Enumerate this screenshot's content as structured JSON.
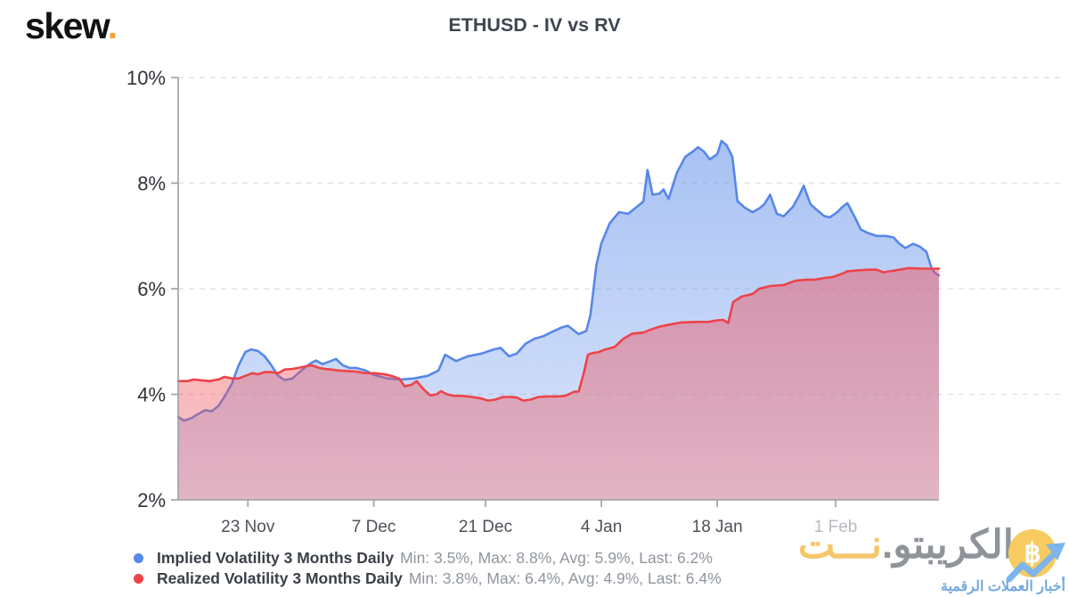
{
  "header": {
    "logo_text": "skew",
    "logo_dot": ".",
    "title": "ETHUSD - IV vs RV"
  },
  "chart_data": {
    "type": "area",
    "title": "ETHUSD - IV vs RV",
    "xlabel": "",
    "ylabel": "",
    "unit": "%",
    "ylim": [
      2,
      10
    ],
    "grid": "dashed-horizontal",
    "legend_position": "bottom-left",
    "yticks": [
      {
        "value": 10,
        "label": "10%"
      },
      {
        "value": 8,
        "label": "8%"
      },
      {
        "value": 6,
        "label": "6%"
      },
      {
        "value": 4,
        "label": "4%"
      },
      {
        "value": 2,
        "label": "2%"
      }
    ],
    "x_domain": [
      0,
      90.6
    ],
    "xticks": [
      {
        "day": 8.3,
        "label": "23 Nov",
        "muted": false
      },
      {
        "day": 23.3,
        "label": "7 Dec",
        "muted": false
      },
      {
        "day": 36.6,
        "label": "21 Dec",
        "muted": false
      },
      {
        "day": 50.4,
        "label": "4 Jan",
        "muted": false
      },
      {
        "day": 64.2,
        "label": "18 Jan",
        "muted": false
      },
      {
        "day": 78.3,
        "label": "1 Feb",
        "muted": true
      }
    ],
    "series": [
      {
        "name": "Implied Volatility 3 Months Daily",
        "color": "#5787e8",
        "fill_rgb": "110,152,236",
        "fill_opacity_top": 0.6,
        "fill_opacity_bottom": 0.24,
        "stats": {
          "min": "3.5%",
          "max": "8.8%",
          "avg": "5.9%",
          "last": "6.2%"
        },
        "points": [
          [
            0,
            3.57
          ],
          [
            0.7,
            3.5
          ],
          [
            1.6,
            3.55
          ],
          [
            2.3,
            3.62
          ],
          [
            3.2,
            3.7
          ],
          [
            4,
            3.68
          ],
          [
            4.8,
            3.78
          ],
          [
            5.5,
            3.95
          ],
          [
            6.4,
            4.2
          ],
          [
            7.2,
            4.55
          ],
          [
            8,
            4.8
          ],
          [
            8.7,
            4.85
          ],
          [
            9.5,
            4.82
          ],
          [
            10.3,
            4.72
          ],
          [
            11.1,
            4.55
          ],
          [
            11.9,
            4.35
          ],
          [
            12.7,
            4.27
          ],
          [
            13.6,
            4.3
          ],
          [
            14.3,
            4.4
          ],
          [
            15.2,
            4.52
          ],
          [
            15.9,
            4.6
          ],
          [
            16.4,
            4.64
          ],
          [
            17.2,
            4.57
          ],
          [
            18,
            4.62
          ],
          [
            18.8,
            4.67
          ],
          [
            19.6,
            4.55
          ],
          [
            20.4,
            4.5
          ],
          [
            21.2,
            4.5
          ],
          [
            22.3,
            4.45
          ],
          [
            23.3,
            4.37
          ],
          [
            24.9,
            4.3
          ],
          [
            26.5,
            4.28
          ],
          [
            28.1,
            4.3
          ],
          [
            29.7,
            4.35
          ],
          [
            31,
            4.45
          ],
          [
            31.8,
            4.75
          ],
          [
            33.1,
            4.63
          ],
          [
            34.5,
            4.72
          ],
          [
            36.1,
            4.77
          ],
          [
            37.6,
            4.85
          ],
          [
            38.4,
            4.88
          ],
          [
            39.4,
            4.72
          ],
          [
            40.3,
            4.77
          ],
          [
            41.4,
            4.96
          ],
          [
            42.4,
            5.05
          ],
          [
            43.5,
            5.1
          ],
          [
            44.5,
            5.18
          ],
          [
            45.6,
            5.26
          ],
          [
            46.4,
            5.3
          ],
          [
            47.7,
            5.14
          ],
          [
            48.6,
            5.2
          ],
          [
            49.1,
            5.5
          ],
          [
            49.8,
            6.44
          ],
          [
            50.4,
            6.86
          ],
          [
            51.4,
            7.24
          ],
          [
            52.5,
            7.45
          ],
          [
            53.6,
            7.42
          ],
          [
            54.6,
            7.55
          ],
          [
            55.4,
            7.65
          ],
          [
            55.9,
            8.25
          ],
          [
            56.5,
            7.78
          ],
          [
            57.3,
            7.8
          ],
          [
            57.8,
            7.88
          ],
          [
            58.4,
            7.7
          ],
          [
            59.4,
            8.2
          ],
          [
            60.4,
            8.5
          ],
          [
            61.3,
            8.6
          ],
          [
            61.9,
            8.68
          ],
          [
            62.6,
            8.6
          ],
          [
            63.3,
            8.45
          ],
          [
            64.2,
            8.55
          ],
          [
            64.7,
            8.8
          ],
          [
            65.3,
            8.72
          ],
          [
            66,
            8.5
          ],
          [
            66.6,
            7.66
          ],
          [
            67.5,
            7.53
          ],
          [
            68.4,
            7.45
          ],
          [
            69.2,
            7.52
          ],
          [
            69.8,
            7.6
          ],
          [
            70.5,
            7.78
          ],
          [
            71.3,
            7.42
          ],
          [
            72.1,
            7.37
          ],
          [
            73.2,
            7.55
          ],
          [
            73.9,
            7.75
          ],
          [
            74.5,
            7.95
          ],
          [
            75.3,
            7.6
          ],
          [
            76,
            7.5
          ],
          [
            76.9,
            7.38
          ],
          [
            77.6,
            7.35
          ],
          [
            78.5,
            7.45
          ],
          [
            79.1,
            7.55
          ],
          [
            79.7,
            7.62
          ],
          [
            80.6,
            7.35
          ],
          [
            81.3,
            7.12
          ],
          [
            82.2,
            7.05
          ],
          [
            83.2,
            7
          ],
          [
            84.3,
            7
          ],
          [
            85.2,
            6.97
          ],
          [
            85.9,
            6.85
          ],
          [
            86.6,
            6.77
          ],
          [
            87.5,
            6.85
          ],
          [
            88.3,
            6.8
          ],
          [
            89.1,
            6.7
          ],
          [
            89.7,
            6.4
          ],
          [
            90.1,
            6.3
          ],
          [
            90.6,
            6.25
          ]
        ]
      },
      {
        "name": "Realized Volatility 3 Months Daily",
        "color": "#ee4348",
        "fill_rgb": "238,83,92",
        "fill_opacity_top": 0.48,
        "fill_opacity_bottom": 0.34,
        "stats": {
          "min": "3.8%",
          "max": "6.4%",
          "avg": "4.9%",
          "last": "6.4%"
        },
        "points": [
          [
            0,
            4.25
          ],
          [
            1.1,
            4.25
          ],
          [
            1.9,
            4.28
          ],
          [
            3,
            4.26
          ],
          [
            3.7,
            4.25
          ],
          [
            4.8,
            4.28
          ],
          [
            5.5,
            4.33
          ],
          [
            6.4,
            4.3
          ],
          [
            7.2,
            4.3
          ],
          [
            8,
            4.35
          ],
          [
            8.8,
            4.4
          ],
          [
            9.5,
            4.38
          ],
          [
            10.3,
            4.42
          ],
          [
            11.1,
            4.42
          ],
          [
            11.9,
            4.4
          ],
          [
            12.7,
            4.47
          ],
          [
            13.6,
            4.48
          ],
          [
            14.3,
            4.5
          ],
          [
            15.2,
            4.53
          ],
          [
            15.9,
            4.55
          ],
          [
            16.8,
            4.5
          ],
          [
            17.5,
            4.48
          ],
          [
            18.2,
            4.47
          ],
          [
            19.1,
            4.45
          ],
          [
            20.1,
            4.44
          ],
          [
            21.2,
            4.43
          ],
          [
            22.3,
            4.4
          ],
          [
            23.3,
            4.4
          ],
          [
            24.6,
            4.38
          ],
          [
            25.4,
            4.35
          ],
          [
            26.3,
            4.3
          ],
          [
            27,
            4.15
          ],
          [
            27.8,
            4.18
          ],
          [
            28.4,
            4.25
          ],
          [
            29.2,
            4.1
          ],
          [
            30,
            3.98
          ],
          [
            30.8,
            4
          ],
          [
            31.3,
            4.06
          ],
          [
            32,
            4
          ],
          [
            32.9,
            3.97
          ],
          [
            33.9,
            3.97
          ],
          [
            35,
            3.95
          ],
          [
            36.1,
            3.92
          ],
          [
            36.9,
            3.88
          ],
          [
            37.8,
            3.9
          ],
          [
            38.7,
            3.95
          ],
          [
            39.6,
            3.95
          ],
          [
            40.3,
            3.94
          ],
          [
            41.1,
            3.88
          ],
          [
            42,
            3.9
          ],
          [
            42.9,
            3.95
          ],
          [
            44,
            3.96
          ],
          [
            45.1,
            3.96
          ],
          [
            46.1,
            3.97
          ],
          [
            47.2,
            4.05
          ],
          [
            47.7,
            4.05
          ],
          [
            48.3,
            4.4
          ],
          [
            48.8,
            4.75
          ],
          [
            49.3,
            4.78
          ],
          [
            50.1,
            4.8
          ],
          [
            50.9,
            4.85
          ],
          [
            52,
            4.9
          ],
          [
            53,
            5.05
          ],
          [
            54.1,
            5.15
          ],
          [
            55.4,
            5.17
          ],
          [
            56.2,
            5.22
          ],
          [
            57.3,
            5.28
          ],
          [
            58.5,
            5.32
          ],
          [
            59.9,
            5.36
          ],
          [
            61.5,
            5.37
          ],
          [
            63.1,
            5.37
          ],
          [
            64.2,
            5.4
          ],
          [
            64.9,
            5.41
          ],
          [
            65.5,
            5.35
          ],
          [
            66.1,
            5.75
          ],
          [
            67.1,
            5.85
          ],
          [
            68.4,
            5.9
          ],
          [
            69.2,
            6
          ],
          [
            70.5,
            6.05
          ],
          [
            72.1,
            6.07
          ],
          [
            73.5,
            6.15
          ],
          [
            74.8,
            6.17
          ],
          [
            75.8,
            6.17
          ],
          [
            76.9,
            6.2
          ],
          [
            77.9,
            6.22
          ],
          [
            79,
            6.28
          ],
          [
            79.7,
            6.33
          ],
          [
            81.1,
            6.35
          ],
          [
            82.2,
            6.36
          ],
          [
            83.2,
            6.36
          ],
          [
            84,
            6.31
          ],
          [
            84.8,
            6.33
          ],
          [
            85.9,
            6.36
          ],
          [
            87,
            6.39
          ],
          [
            88.5,
            6.38
          ],
          [
            89.6,
            6.38
          ],
          [
            90.6,
            6.38
          ]
        ]
      }
    ],
    "colors": {
      "axis": "#9aa0a6",
      "grid": "#e3e3e5",
      "y_label": "#303338",
      "x_label": "#4d5158",
      "x_label_muted": "#b7bbc0"
    }
  },
  "legend": {
    "items": [
      {
        "label": "Implied Volatility 3 Months Daily",
        "stats": "Min: 3.5%, Max: 8.8%, Avg: 5.9%, Last: 6.2%",
        "color": "#5787e8"
      },
      {
        "label": "Realized Volatility 3 Months Daily",
        "stats": "Min: 3.8%, Max: 6.4%, Avg: 4.9%, Last: 6.4%",
        "color": "#ee4348"
      }
    ]
  },
  "watermark": {
    "brand_gray": "الكريبتو.",
    "brand_yellow": "نـــت",
    "tagline": "أخبار العملات الرقمية",
    "coin_symbol": "฿",
    "colors": {
      "gray": "#8f949b",
      "yellow": "#f6c66a",
      "tagline_blue": "#74a9e2",
      "coin": "#f7cb5f",
      "arrow": "#7db4ec"
    }
  }
}
